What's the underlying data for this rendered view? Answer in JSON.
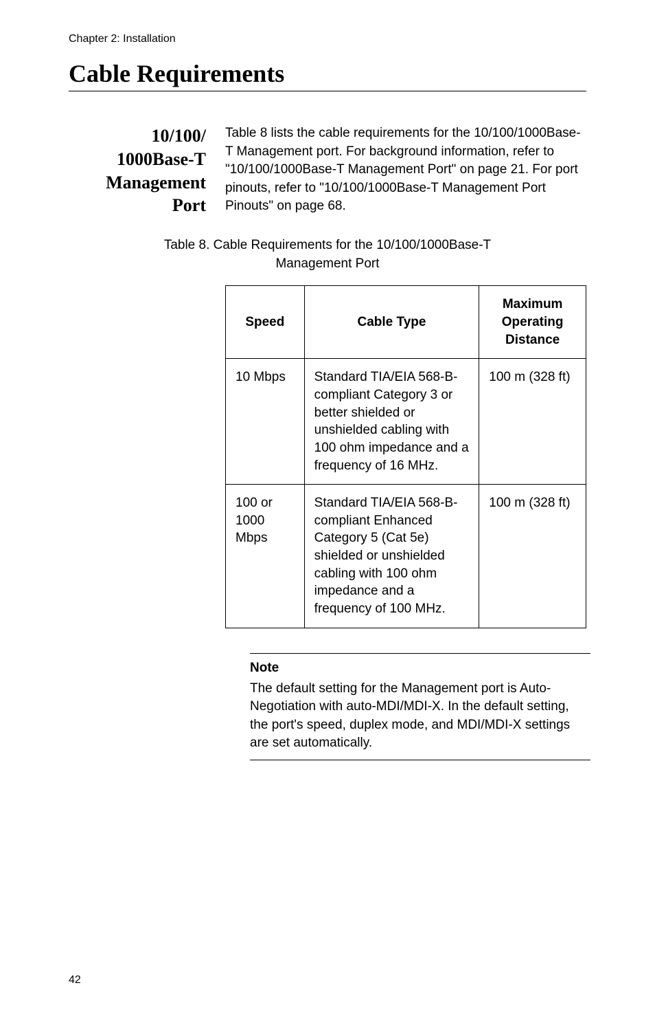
{
  "chapter_header": "Chapter 2: Installation",
  "section_title": "Cable Requirements",
  "side_heading_line1": "10/100/",
  "side_heading_line2": "1000Base-T",
  "side_heading_line3": "Management",
  "side_heading_line4": "Port",
  "intro_paragraph": "Table 8 lists the cable requirements for the 10/100/1000Base-T Management port. For background information, refer to \"10/100/1000Base-T Management Port\" on page 21. For port pinouts, refer to \"10/100/1000Base-T Management Port Pinouts\" on page 68.",
  "table_caption_line1": "Table 8. Cable Requirements for the 10/100/1000Base-T",
  "table_caption_line2": "Management Port",
  "table": {
    "headers": {
      "speed": "Speed",
      "cable_type": "Cable Type",
      "max_dist_line1": "Maximum",
      "max_dist_line2": "Operating",
      "max_dist_line3": "Distance"
    },
    "rows": [
      {
        "speed": "10 Mbps",
        "cable_type": "Standard TIA/EIA 568-B-compliant Category 3 or better shielded or unshielded cabling with 100 ohm impedance and a frequency of 16 MHz.",
        "distance": "100 m (328 ft)"
      },
      {
        "speed": "100 or 1000 Mbps",
        "cable_type": "Standard TIA/EIA 568-B-compliant Enhanced Category 5 (Cat 5e) shielded or unshielded cabling with 100 ohm impedance and a frequency of 100 MHz.",
        "distance": "100 m (328 ft)"
      }
    ]
  },
  "note_label": "Note",
  "note_text": "The default setting for the Management port is Auto-Negotiation with auto-MDI/MDI-X. In the default setting, the port's speed, duplex mode, and MDI/MDI-X settings are set automatically.",
  "page_number": "42"
}
